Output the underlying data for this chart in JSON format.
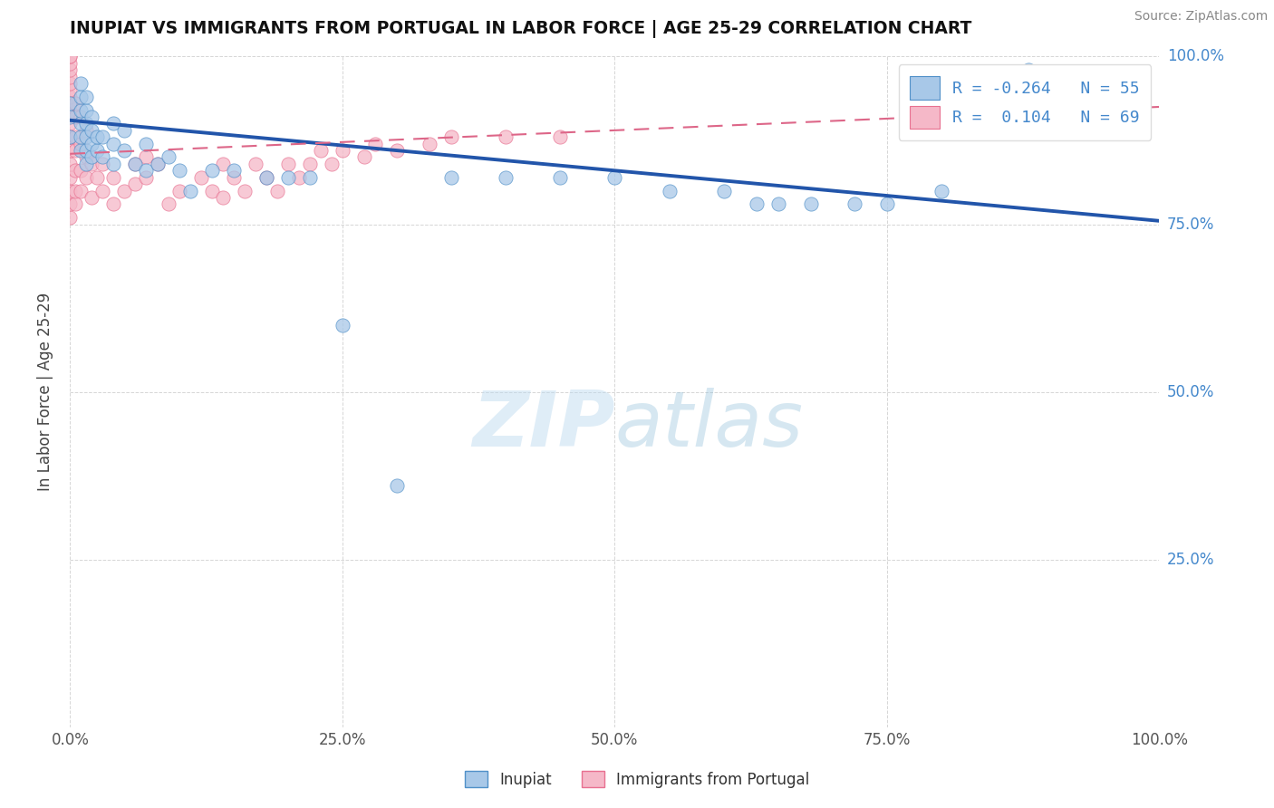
{
  "title": "INUPIAT VS IMMIGRANTS FROM PORTUGAL IN LABOR FORCE | AGE 25-29 CORRELATION CHART",
  "source": "Source: ZipAtlas.com",
  "ylabel": "In Labor Force | Age 25-29",
  "xlim": [
    0.0,
    1.0
  ],
  "ylim": [
    0.0,
    1.0
  ],
  "legend_r_blue": "-0.264",
  "legend_n_blue": "55",
  "legend_r_pink": "0.104",
  "legend_n_pink": "69",
  "blue_scatter_color": "#a8c8e8",
  "blue_edge_color": "#5090c8",
  "pink_scatter_color": "#f5b8c8",
  "pink_edge_color": "#e87090",
  "blue_line_color": "#2255aa",
  "pink_line_color": "#dd6688",
  "watermark_color": "#cce0f0",
  "right_label_color": "#4488cc",
  "inupiat_x": [
    0.0,
    0.0,
    0.0,
    0.01,
    0.01,
    0.01,
    0.01,
    0.01,
    0.01,
    0.015,
    0.015,
    0.015,
    0.015,
    0.015,
    0.015,
    0.02,
    0.02,
    0.02,
    0.02,
    0.025,
    0.025,
    0.03,
    0.03,
    0.04,
    0.04,
    0.04,
    0.05,
    0.05,
    0.06,
    0.07,
    0.07,
    0.08,
    0.09,
    0.1,
    0.11,
    0.13,
    0.15,
    0.18,
    0.2,
    0.22,
    0.25,
    0.3,
    0.35,
    0.4,
    0.45,
    0.5,
    0.55,
    0.6,
    0.63,
    0.65,
    0.68,
    0.72,
    0.75,
    0.8,
    0.88
  ],
  "inupiat_y": [
    0.88,
    0.91,
    0.93,
    0.86,
    0.88,
    0.9,
    0.92,
    0.94,
    0.96,
    0.84,
    0.86,
    0.88,
    0.9,
    0.92,
    0.94,
    0.85,
    0.87,
    0.89,
    0.91,
    0.86,
    0.88,
    0.85,
    0.88,
    0.84,
    0.87,
    0.9,
    0.86,
    0.89,
    0.84,
    0.83,
    0.87,
    0.84,
    0.85,
    0.83,
    0.8,
    0.83,
    0.83,
    0.82,
    0.82,
    0.82,
    0.6,
    0.36,
    0.82,
    0.82,
    0.82,
    0.82,
    0.8,
    0.8,
    0.78,
    0.78,
    0.78,
    0.78,
    0.78,
    0.8,
    0.98
  ],
  "portugal_x": [
    0.0,
    0.0,
    0.0,
    0.0,
    0.0,
    0.0,
    0.0,
    0.0,
    0.0,
    0.0,
    0.0,
    0.0,
    0.0,
    0.0,
    0.0,
    0.0,
    0.0,
    0.0,
    0.005,
    0.005,
    0.005,
    0.005,
    0.005,
    0.005,
    0.005,
    0.01,
    0.01,
    0.01,
    0.01,
    0.015,
    0.015,
    0.015,
    0.02,
    0.02,
    0.025,
    0.03,
    0.03,
    0.04,
    0.04,
    0.05,
    0.06,
    0.06,
    0.07,
    0.07,
    0.08,
    0.09,
    0.1,
    0.12,
    0.13,
    0.14,
    0.14,
    0.15,
    0.16,
    0.17,
    0.18,
    0.19,
    0.2,
    0.21,
    0.22,
    0.23,
    0.24,
    0.25,
    0.27,
    0.28,
    0.3,
    0.33,
    0.35,
    0.4,
    0.45
  ],
  "portugal_y": [
    0.76,
    0.78,
    0.8,
    0.82,
    0.84,
    0.86,
    0.88,
    0.9,
    0.92,
    0.93,
    0.94,
    0.95,
    0.96,
    0.97,
    0.98,
    0.99,
    1.0,
    1.0,
    0.78,
    0.8,
    0.83,
    0.86,
    0.88,
    0.91,
    0.93,
    0.8,
    0.83,
    0.87,
    0.91,
    0.82,
    0.85,
    0.89,
    0.79,
    0.84,
    0.82,
    0.8,
    0.84,
    0.78,
    0.82,
    0.8,
    0.81,
    0.84,
    0.82,
    0.85,
    0.84,
    0.78,
    0.8,
    0.82,
    0.8,
    0.79,
    0.84,
    0.82,
    0.8,
    0.84,
    0.82,
    0.8,
    0.84,
    0.82,
    0.84,
    0.86,
    0.84,
    0.86,
    0.85,
    0.87,
    0.86,
    0.87,
    0.88,
    0.88,
    0.88
  ],
  "blue_trend_x": [
    0.0,
    1.0
  ],
  "blue_trend_y": [
    0.905,
    0.755
  ],
  "pink_trend_x": [
    0.0,
    1.0
  ],
  "pink_trend_y": [
    0.855,
    0.925
  ]
}
